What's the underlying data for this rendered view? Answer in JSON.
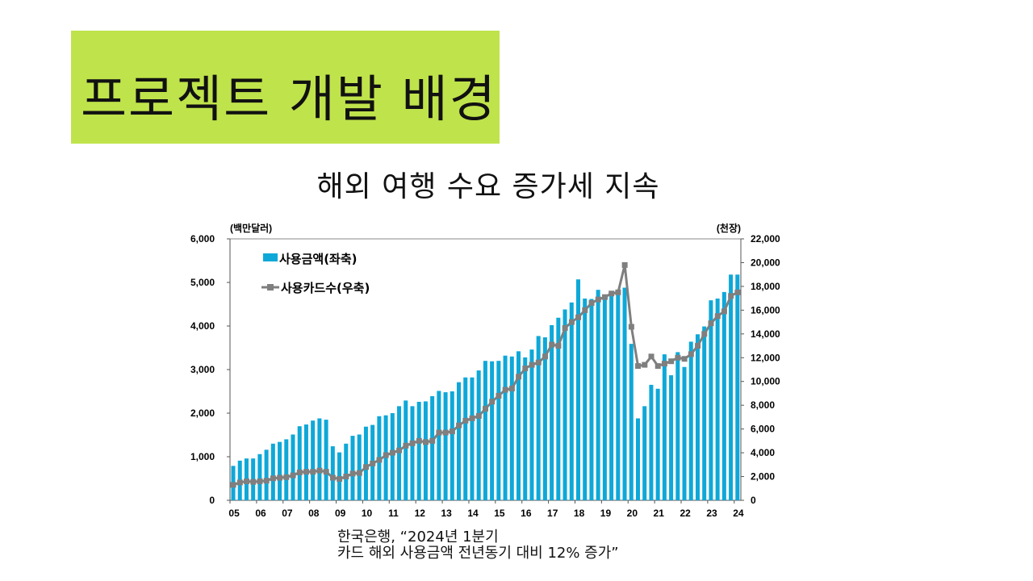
{
  "header": {
    "title": "프로젝트 개발 배경"
  },
  "subtitle": "해외 여행 수요 증가세 지속",
  "caption": {
    "line1": "한국은행, “2024년 1분기",
    "line2": "카드 해외 사용금액 전년동기 대비 12% 증가”"
  },
  "chart_data": {
    "type": "bar",
    "title": "",
    "left_unit": "(백만달러)",
    "right_unit": "(천장)",
    "ylim_left": [
      0,
      6000
    ],
    "ylim_right": [
      0,
      22000
    ],
    "yticks_left": [
      "0",
      "1,000",
      "2,000",
      "3,000",
      "4,000",
      "5,000",
      "6,000"
    ],
    "yticks_right": [
      "0",
      "2,000",
      "4,000",
      "6,000",
      "8,000",
      "10,000",
      "12,000",
      "14,000",
      "16,000",
      "18,000",
      "20,000",
      "22,000"
    ],
    "year_labels": [
      "05",
      "06",
      "07",
      "08",
      "09",
      "10",
      "11",
      "12",
      "13",
      "14",
      "15",
      "16",
      "17",
      "18",
      "19",
      "20",
      "21",
      "22",
      "23",
      "24"
    ],
    "legend": {
      "placement": "top-left",
      "bars": "사용금액(좌축)",
      "line": "사용카드수(우축)"
    },
    "colors": {
      "bar": "#0ea8d8",
      "line": "#7f7f7f"
    },
    "series": [
      {
        "name": "사용금액(좌축)",
        "axis": "left",
        "type": "bar",
        "values": [
          790,
          910,
          960,
          960,
          1060,
          1160,
          1300,
          1340,
          1400,
          1510,
          1700,
          1740,
          1830,
          1880,
          1850,
          1240,
          1100,
          1300,
          1480,
          1510,
          1690,
          1730,
          1930,
          1950,
          2000,
          2160,
          2290,
          2160,
          2260,
          2270,
          2390,
          2510,
          2480,
          2500,
          2710,
          2820,
          2820,
          2980,
          3200,
          3190,
          3200,
          3320,
          3300,
          3420,
          3280,
          3460,
          3770,
          3740,
          4020,
          4190,
          4380,
          4540,
          5070,
          4630,
          4620,
          4830,
          4720,
          4800,
          4800,
          4880,
          3590,
          1880,
          2160,
          2650,
          2560,
          3350,
          2870,
          3400,
          3060,
          3640,
          3810,
          3990,
          4590,
          4630,
          4780,
          5180,
          5180
        ]
      },
      {
        "name": "사용카드수(우축)",
        "axis": "right",
        "type": "line",
        "values": [
          1300,
          1500,
          1600,
          1550,
          1600,
          1650,
          1850,
          1900,
          1950,
          2100,
          2350,
          2400,
          2400,
          2500,
          2400,
          1900,
          1800,
          2000,
          2250,
          2300,
          2800,
          3100,
          3400,
          3800,
          4000,
          4200,
          4600,
          4800,
          5000,
          4900,
          5000,
          5700,
          5700,
          5800,
          6300,
          6700,
          6900,
          7100,
          7700,
          8300,
          8800,
          9300,
          9400,
          10400,
          11100,
          11400,
          11600,
          12100,
          13100,
          13000,
          14500,
          15000,
          15400,
          16000,
          16600,
          16900,
          17100,
          17400,
          17500,
          19800,
          14600,
          11300,
          11400,
          12100,
          11300,
          11500,
          11700,
          12000,
          11900,
          12300,
          13000,
          14000,
          14900,
          15500,
          15900,
          17200,
          17500
        ]
      }
    ]
  }
}
